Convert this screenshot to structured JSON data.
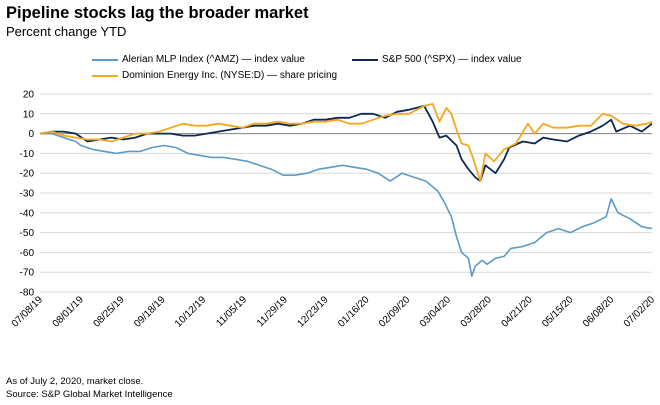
{
  "title": "Pipeline stocks lag the broader market",
  "subtitle": "Percent change YTD",
  "footnotes": [
    "As of July 2, 2020, market close.",
    "Source: S&P Global Market Intelligence"
  ],
  "colors": {
    "amz": "#5b9bc6",
    "spx": "#0d2850",
    "d": "#f3a81f",
    "grid": "#d9d9d9",
    "axis": "#808080"
  },
  "chart_data": {
    "type": "line",
    "x_tick_labels": [
      "07/08/19",
      "08/01/19",
      "08/25/19",
      "09/18/19",
      "10/12/19",
      "11/05/19",
      "11/29/19",
      "12/23/19",
      "01/16/20",
      "02/09/20",
      "03/04/20",
      "03/28/20",
      "04/21/20",
      "05/15/20",
      "06/08/20",
      "07/02/20"
    ],
    "y_ticks": [
      20,
      10,
      0,
      -10,
      -20,
      -30,
      -40,
      -50,
      -60,
      -70,
      -80
    ],
    "ylim": [
      -80,
      20
    ],
    "xlim": [
      "2019-07-08",
      "2020-07-02"
    ],
    "grid": "horizontal",
    "legend": "top",
    "series": [
      {
        "name": "Alerian MLP Index (^AMZ) — index value",
        "key": "amz",
        "points": [
          [
            "2019-07-08",
            0
          ],
          [
            "2019-07-15",
            0
          ],
          [
            "2019-07-22",
            -2
          ],
          [
            "2019-07-29",
            -4
          ],
          [
            "2019-08-01",
            -6
          ],
          [
            "2019-08-08",
            -8
          ],
          [
            "2019-08-15",
            -9
          ],
          [
            "2019-08-22",
            -10
          ],
          [
            "2019-08-29",
            -9
          ],
          [
            "2019-09-05",
            -9
          ],
          [
            "2019-09-12",
            -7
          ],
          [
            "2019-09-19",
            -6
          ],
          [
            "2019-09-26",
            -7
          ],
          [
            "2019-10-03",
            -10
          ],
          [
            "2019-10-10",
            -11
          ],
          [
            "2019-10-17",
            -12
          ],
          [
            "2019-10-24",
            -12
          ],
          [
            "2019-10-31",
            -13
          ],
          [
            "2019-11-07",
            -14
          ],
          [
            "2019-11-14",
            -16
          ],
          [
            "2019-11-21",
            -18
          ],
          [
            "2019-11-28",
            -21
          ],
          [
            "2019-12-05",
            -21
          ],
          [
            "2019-12-12",
            -20
          ],
          [
            "2019-12-19",
            -18
          ],
          [
            "2019-12-26",
            -17
          ],
          [
            "2020-01-02",
            -16
          ],
          [
            "2020-01-09",
            -17
          ],
          [
            "2020-01-16",
            -18
          ],
          [
            "2020-01-23",
            -20
          ],
          [
            "2020-01-30",
            -24
          ],
          [
            "2020-02-06",
            -20
          ],
          [
            "2020-02-13",
            -22
          ],
          [
            "2020-02-20",
            -24
          ],
          [
            "2020-02-27",
            -29
          ],
          [
            "2020-03-02",
            -35
          ],
          [
            "2020-03-06",
            -42
          ],
          [
            "2020-03-09",
            -52
          ],
          [
            "2020-03-12",
            -60
          ],
          [
            "2020-03-16",
            -63
          ],
          [
            "2020-03-18",
            -72
          ],
          [
            "2020-03-20",
            -67
          ],
          [
            "2020-03-24",
            -64
          ],
          [
            "2020-03-27",
            -66
          ],
          [
            "2020-04-01",
            -63
          ],
          [
            "2020-04-06",
            -62
          ],
          [
            "2020-04-10",
            -58
          ],
          [
            "2020-04-17",
            -57
          ],
          [
            "2020-04-24",
            -55
          ],
          [
            "2020-05-01",
            -50
          ],
          [
            "2020-05-08",
            -48
          ],
          [
            "2020-05-15",
            -50
          ],
          [
            "2020-05-22",
            -47
          ],
          [
            "2020-05-29",
            -45
          ],
          [
            "2020-06-05",
            -42
          ],
          [
            "2020-06-08",
            -33
          ],
          [
            "2020-06-12",
            -40
          ],
          [
            "2020-06-19",
            -43
          ],
          [
            "2020-06-26",
            -47
          ],
          [
            "2020-07-02",
            -48
          ]
        ]
      },
      {
        "name": "S&P 500 (^SPX) — index value",
        "key": "spx",
        "points": [
          [
            "2019-07-08",
            0
          ],
          [
            "2019-07-15",
            1
          ],
          [
            "2019-07-22",
            1
          ],
          [
            "2019-07-29",
            0
          ],
          [
            "2019-08-05",
            -4
          ],
          [
            "2019-08-12",
            -3
          ],
          [
            "2019-08-19",
            -2
          ],
          [
            "2019-08-26",
            -3
          ],
          [
            "2019-09-02",
            -2
          ],
          [
            "2019-09-09",
            0
          ],
          [
            "2019-09-16",
            0
          ],
          [
            "2019-09-23",
            0
          ],
          [
            "2019-09-30",
            -1
          ],
          [
            "2019-10-07",
            -1
          ],
          [
            "2019-10-14",
            0
          ],
          [
            "2019-10-21",
            1
          ],
          [
            "2019-10-28",
            2
          ],
          [
            "2019-11-04",
            3
          ],
          [
            "2019-11-11",
            4
          ],
          [
            "2019-11-18",
            4
          ],
          [
            "2019-11-25",
            5
          ],
          [
            "2019-12-02",
            4
          ],
          [
            "2019-12-09",
            5
          ],
          [
            "2019-12-16",
            7
          ],
          [
            "2019-12-23",
            7
          ],
          [
            "2019-12-30",
            8
          ],
          [
            "2020-01-06",
            8
          ],
          [
            "2020-01-13",
            10
          ],
          [
            "2020-01-20",
            10
          ],
          [
            "2020-01-27",
            8
          ],
          [
            "2020-02-03",
            11
          ],
          [
            "2020-02-10",
            12
          ],
          [
            "2020-02-19",
            14
          ],
          [
            "2020-02-24",
            6
          ],
          [
            "2020-02-28",
            -2
          ],
          [
            "2020-03-03",
            -1
          ],
          [
            "2020-03-09",
            -6
          ],
          [
            "2020-03-12",
            -13
          ],
          [
            "2020-03-16",
            -18
          ],
          [
            "2020-03-20",
            -22
          ],
          [
            "2020-03-23",
            -24
          ],
          [
            "2020-03-26",
            -16
          ],
          [
            "2020-04-01",
            -20
          ],
          [
            "2020-04-06",
            -13
          ],
          [
            "2020-04-09",
            -7
          ],
          [
            "2020-04-17",
            -4
          ],
          [
            "2020-04-24",
            -5
          ],
          [
            "2020-04-29",
            -2
          ],
          [
            "2020-05-05",
            -3
          ],
          [
            "2020-05-13",
            -4
          ],
          [
            "2020-05-20",
            -1
          ],
          [
            "2020-05-27",
            1
          ],
          [
            "2020-06-03",
            4
          ],
          [
            "2020-06-08",
            7
          ],
          [
            "2020-06-11",
            1
          ],
          [
            "2020-06-19",
            4
          ],
          [
            "2020-06-26",
            1
          ],
          [
            "2020-07-02",
            5
          ]
        ]
      },
      {
        "name": "Dominion Energy Inc. (NYSE:D) — share pricing",
        "key": "d",
        "points": [
          [
            "2019-07-08",
            0
          ],
          [
            "2019-07-15",
            1
          ],
          [
            "2019-07-22",
            -1
          ],
          [
            "2019-07-29",
            -2
          ],
          [
            "2019-08-05",
            -3
          ],
          [
            "2019-08-12",
            -3
          ],
          [
            "2019-08-19",
            -4
          ],
          [
            "2019-08-26",
            -2
          ],
          [
            "2019-09-02",
            0
          ],
          [
            "2019-09-09",
            0
          ],
          [
            "2019-09-16",
            1
          ],
          [
            "2019-09-23",
            3
          ],
          [
            "2019-09-30",
            5
          ],
          [
            "2019-10-07",
            4
          ],
          [
            "2019-10-14",
            4
          ],
          [
            "2019-10-21",
            5
          ],
          [
            "2019-10-28",
            4
          ],
          [
            "2019-11-04",
            3
          ],
          [
            "2019-11-11",
            5
          ],
          [
            "2019-11-18",
            5
          ],
          [
            "2019-11-25",
            6
          ],
          [
            "2019-12-02",
            5
          ],
          [
            "2019-12-09",
            5
          ],
          [
            "2019-12-16",
            6
          ],
          [
            "2019-12-23",
            6
          ],
          [
            "2019-12-30",
            7
          ],
          [
            "2020-01-06",
            5
          ],
          [
            "2020-01-13",
            5
          ],
          [
            "2020-01-20",
            7
          ],
          [
            "2020-01-27",
            9
          ],
          [
            "2020-02-03",
            10
          ],
          [
            "2020-02-10",
            10
          ],
          [
            "2020-02-19",
            14
          ],
          [
            "2020-02-24",
            15
          ],
          [
            "2020-02-28",
            6
          ],
          [
            "2020-03-03",
            13
          ],
          [
            "2020-03-06",
            10
          ],
          [
            "2020-03-09",
            2
          ],
          [
            "2020-03-12",
            -5
          ],
          [
            "2020-03-16",
            -6
          ],
          [
            "2020-03-19",
            -13
          ],
          [
            "2020-03-23",
            -24
          ],
          [
            "2020-03-26",
            -10
          ],
          [
            "2020-03-31",
            -14
          ],
          [
            "2020-04-06",
            -8
          ],
          [
            "2020-04-13",
            -5
          ],
          [
            "2020-04-20",
            5
          ],
          [
            "2020-04-24",
            0
          ],
          [
            "2020-04-29",
            5
          ],
          [
            "2020-05-05",
            3
          ],
          [
            "2020-05-13",
            3
          ],
          [
            "2020-05-20",
            4
          ],
          [
            "2020-05-27",
            4
          ],
          [
            "2020-06-03",
            10
          ],
          [
            "2020-06-08",
            9
          ],
          [
            "2020-06-15",
            5
          ],
          [
            "2020-06-22",
            4
          ],
          [
            "2020-06-29",
            5
          ],
          [
            "2020-07-02",
            6
          ]
        ]
      }
    ]
  }
}
